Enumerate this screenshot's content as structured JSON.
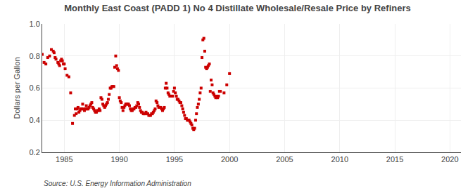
{
  "chart_data": {
    "type": "scatter",
    "title": "Monthly East Coast (PADD 1) No 4 Distillate Wholesale/Resale Price by Refiners",
    "ylabel": "Dollars per Gallon",
    "annotations": [
      "Source: U.S. Energy Information Administration"
    ],
    "color": "#cc0000",
    "marker": "square",
    "grid": true,
    "xlim": [
      1983,
      2021
    ],
    "ylim": [
      0.2,
      1.0
    ],
    "xticks": [
      1985,
      1990,
      1995,
      2000,
      2005,
      2010,
      2015,
      2020
    ],
    "yticks": [
      0.2,
      0.4,
      0.6,
      0.8,
      {
        "value": 1.0,
        "label": "1.0"
      }
    ],
    "x": [
      1983.0,
      1983.17,
      1983.33,
      1983.5,
      1983.67,
      1983.83,
      1984.0,
      1984.08,
      1984.17,
      1984.25,
      1984.42,
      1984.5,
      1984.58,
      1984.67,
      1984.75,
      1984.83,
      1984.92,
      1985.0,
      1985.08,
      1985.25,
      1985.42,
      1985.58,
      1985.75,
      1985.92,
      1986.0,
      1986.08,
      1986.17,
      1986.25,
      1986.33,
      1986.42,
      1986.5,
      1986.58,
      1986.67,
      1986.75,
      1986.83,
      1986.92,
      1987.0,
      1987.08,
      1987.17,
      1987.25,
      1987.33,
      1987.42,
      1987.5,
      1987.58,
      1987.67,
      1987.75,
      1987.83,
      1987.92,
      1988.0,
      1988.08,
      1988.17,
      1988.25,
      1988.33,
      1988.42,
      1988.5,
      1988.58,
      1988.67,
      1988.75,
      1988.83,
      1988.92,
      1989.0,
      1989.08,
      1989.17,
      1989.25,
      1989.33,
      1989.42,
      1989.5,
      1989.58,
      1989.67,
      1989.75,
      1989.83,
      1989.92,
      1990.0,
      1990.08,
      1990.17,
      1990.25,
      1990.33,
      1990.42,
      1990.5,
      1990.58,
      1990.67,
      1990.75,
      1990.83,
      1990.92,
      1991.0,
      1991.08,
      1991.17,
      1991.25,
      1991.33,
      1991.42,
      1991.5,
      1991.58,
      1991.67,
      1991.75,
      1991.83,
      1991.92,
      1992.0,
      1992.08,
      1992.17,
      1992.25,
      1992.33,
      1992.42,
      1992.5,
      1992.58,
      1992.67,
      1992.75,
      1992.83,
      1992.92,
      1993.0,
      1993.08,
      1993.17,
      1993.25,
      1993.33,
      1993.42,
      1993.5,
      1993.58,
      1993.67,
      1993.75,
      1993.83,
      1993.92,
      1994.0,
      1994.08,
      1994.17,
      1994.25,
      1994.33,
      1994.42,
      1994.5,
      1994.58,
      1994.67,
      1994.75,
      1994.83,
      1994.92,
      1995.0,
      1995.08,
      1995.17,
      1995.25,
      1995.33,
      1995.42,
      1995.5,
      1995.58,
      1995.67,
      1995.75,
      1995.83,
      1995.92,
      1996.0,
      1996.08,
      1996.17,
      1996.25,
      1996.33,
      1996.42,
      1996.5,
      1996.58,
      1996.67,
      1996.75,
      1996.83,
      1996.92,
      1997.0,
      1997.08,
      1997.17,
      1997.25,
      1997.33,
      1997.42,
      1997.5,
      1997.58,
      1997.67,
      1997.75,
      1997.83,
      1997.92,
      1998.0,
      1998.08,
      1998.17,
      1998.25,
      1998.33,
      1998.42,
      1998.5,
      1998.58,
      1998.67,
      1998.75,
      1998.83,
      1998.92,
      1999.0,
      1999.08,
      1999.17,
      1999.5,
      1999.75,
      2000.0
    ],
    "values": [
      0.81,
      0.76,
      0.75,
      0.79,
      0.8,
      0.84,
      0.83,
      0.82,
      0.79,
      0.78,
      0.76,
      0.75,
      0.74,
      0.77,
      0.78,
      0.77,
      0.75,
      0.75,
      0.72,
      0.68,
      0.67,
      0.57,
      0.38,
      0.43,
      0.47,
      0.44,
      0.47,
      0.48,
      0.45,
      0.46,
      0.47,
      0.47,
      0.5,
      0.47,
      0.46,
      0.47,
      0.49,
      0.47,
      0.47,
      0.48,
      0.49,
      0.5,
      0.51,
      0.48,
      0.47,
      0.46,
      0.45,
      0.45,
      0.46,
      0.46,
      0.47,
      0.46,
      0.54,
      0.53,
      0.5,
      0.49,
      0.48,
      0.49,
      0.5,
      0.51,
      0.53,
      0.56,
      0.6,
      0.6,
      0.61,
      0.61,
      0.61,
      0.73,
      0.8,
      0.74,
      0.72,
      0.71,
      0.54,
      0.52,
      0.51,
      0.48,
      0.46,
      0.48,
      0.49,
      0.5,
      0.5,
      0.5,
      0.5,
      0.49,
      0.47,
      0.46,
      0.46,
      0.47,
      0.47,
      0.48,
      0.48,
      0.49,
      0.51,
      0.5,
      0.48,
      0.46,
      0.45,
      0.45,
      0.44,
      0.44,
      0.44,
      0.45,
      0.44,
      0.44,
      0.43,
      0.43,
      0.43,
      0.44,
      0.44,
      0.45,
      0.46,
      0.47,
      0.52,
      0.51,
      0.49,
      0.48,
      0.48,
      0.48,
      0.47,
      0.46,
      0.47,
      0.48,
      0.6,
      0.63,
      0.6,
      0.57,
      0.56,
      0.55,
      0.55,
      0.55,
      0.55,
      0.58,
      0.6,
      0.57,
      0.55,
      0.53,
      0.53,
      0.52,
      0.51,
      0.51,
      0.49,
      0.47,
      0.45,
      0.43,
      0.41,
      0.41,
      0.4,
      0.4,
      0.4,
      0.39,
      0.38,
      0.37,
      0.35,
      0.34,
      0.35,
      0.4,
      0.44,
      0.48,
      0.5,
      0.53,
      0.57,
      0.6,
      0.79,
      0.9,
      0.91,
      0.83,
      0.73,
      0.72,
      0.73,
      0.74,
      0.75,
      0.58,
      0.65,
      0.62,
      0.57,
      0.56,
      0.55,
      0.54,
      0.55,
      0.54,
      0.55,
      0.58,
      0.58,
      0.57,
      0.62,
      0.69
    ]
  }
}
